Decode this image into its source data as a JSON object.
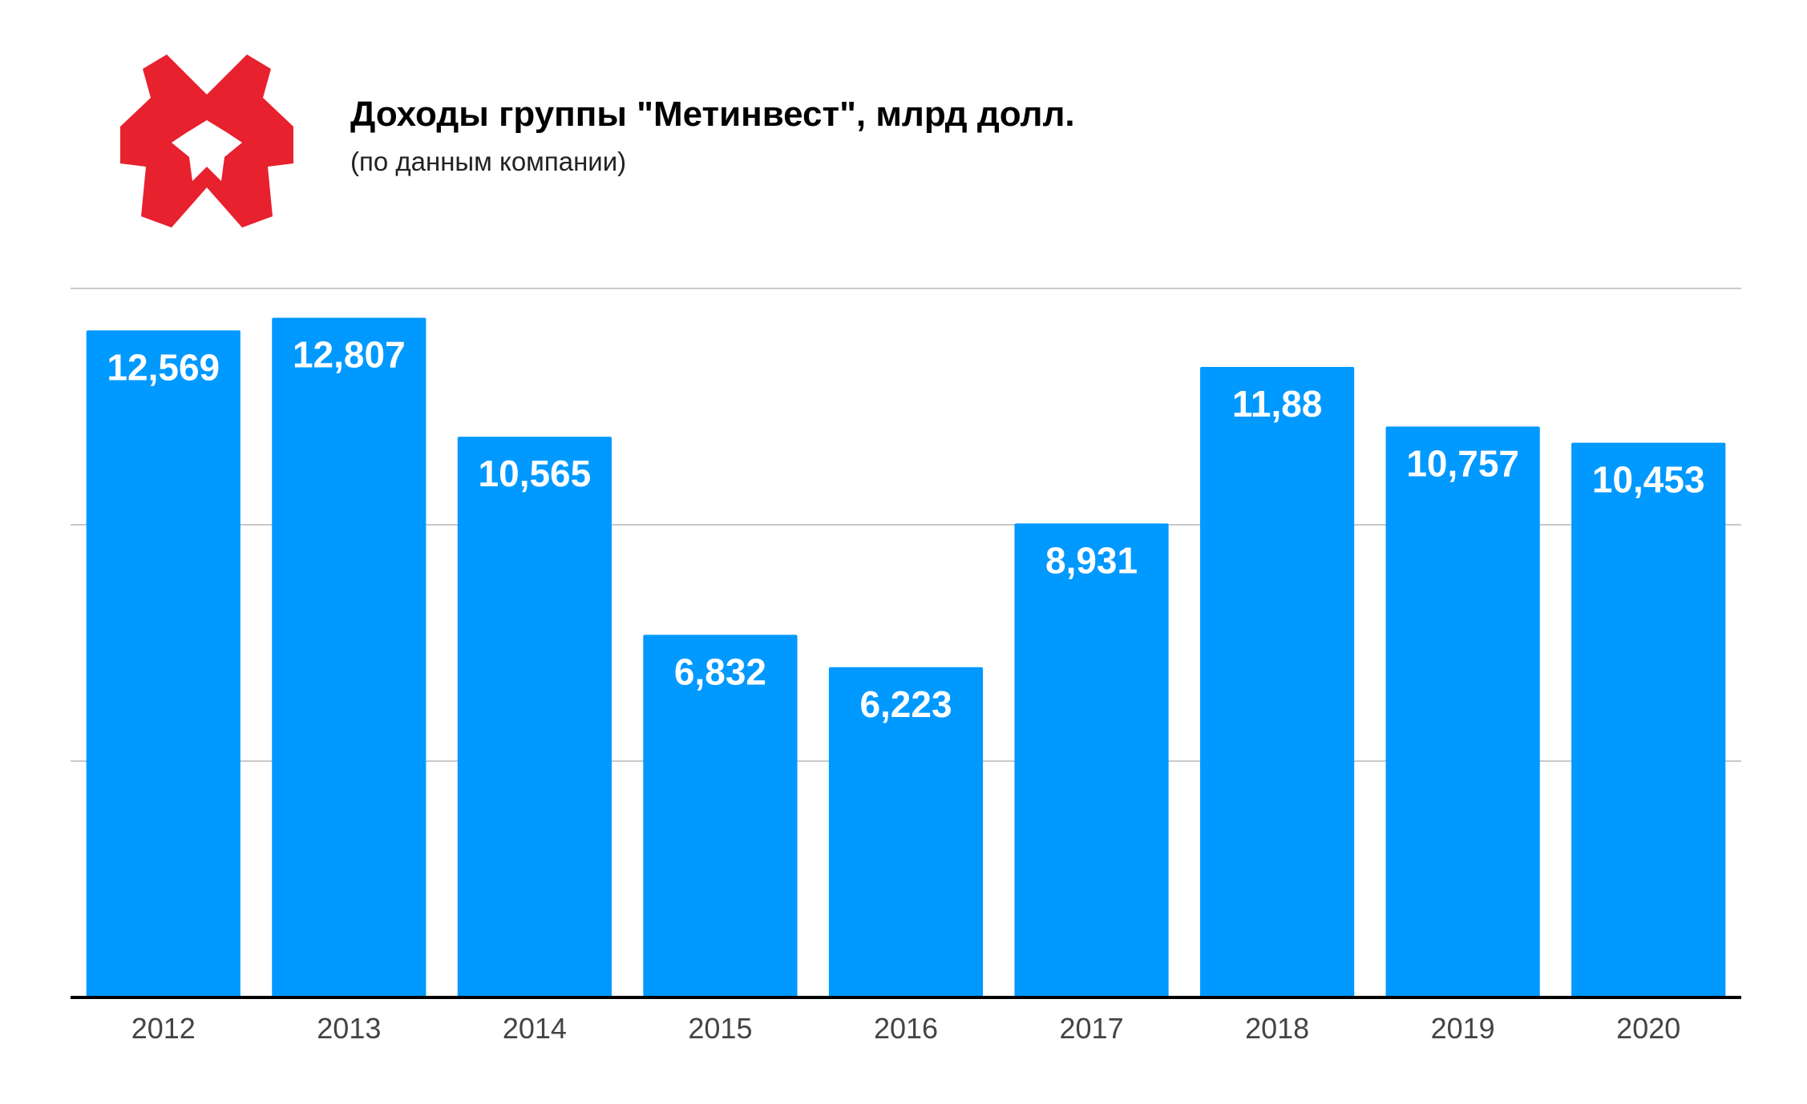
{
  "header": {
    "title": "Доходы группы \"Метинвест\", млрд долл.",
    "subtitle": "(по данным компании)"
  },
  "logo": {
    "icon": "metinvest-logo-icon",
    "color": "#E8212E"
  },
  "colors": {
    "bar": "#0099FF",
    "bar_label": "#FFFFFF",
    "grid": "#C9C9C9",
    "axis": "#000000",
    "tick": "#444444"
  },
  "chart_data": {
    "type": "bar",
    "title": "Доходы группы \"Метинвест\", млрд долл.",
    "subtitle": "(по данным компании)",
    "categories": [
      "2012",
      "2013",
      "2014",
      "2015",
      "2016",
      "2017",
      "2018",
      "2019",
      "2020"
    ],
    "values": [
      12.569,
      12.807,
      10.565,
      6.832,
      6.223,
      8.931,
      11.88,
      10.757,
      10.453
    ],
    "value_labels": [
      "12,569",
      "12,807",
      "10,565",
      "6,832",
      "6,223",
      "8,931",
      "11,88",
      "10,757",
      "10,453"
    ],
    "ylim": [
      0,
      13.36
    ],
    "grid": true,
    "legend": "none",
    "xlabel": "",
    "ylabel": ""
  }
}
